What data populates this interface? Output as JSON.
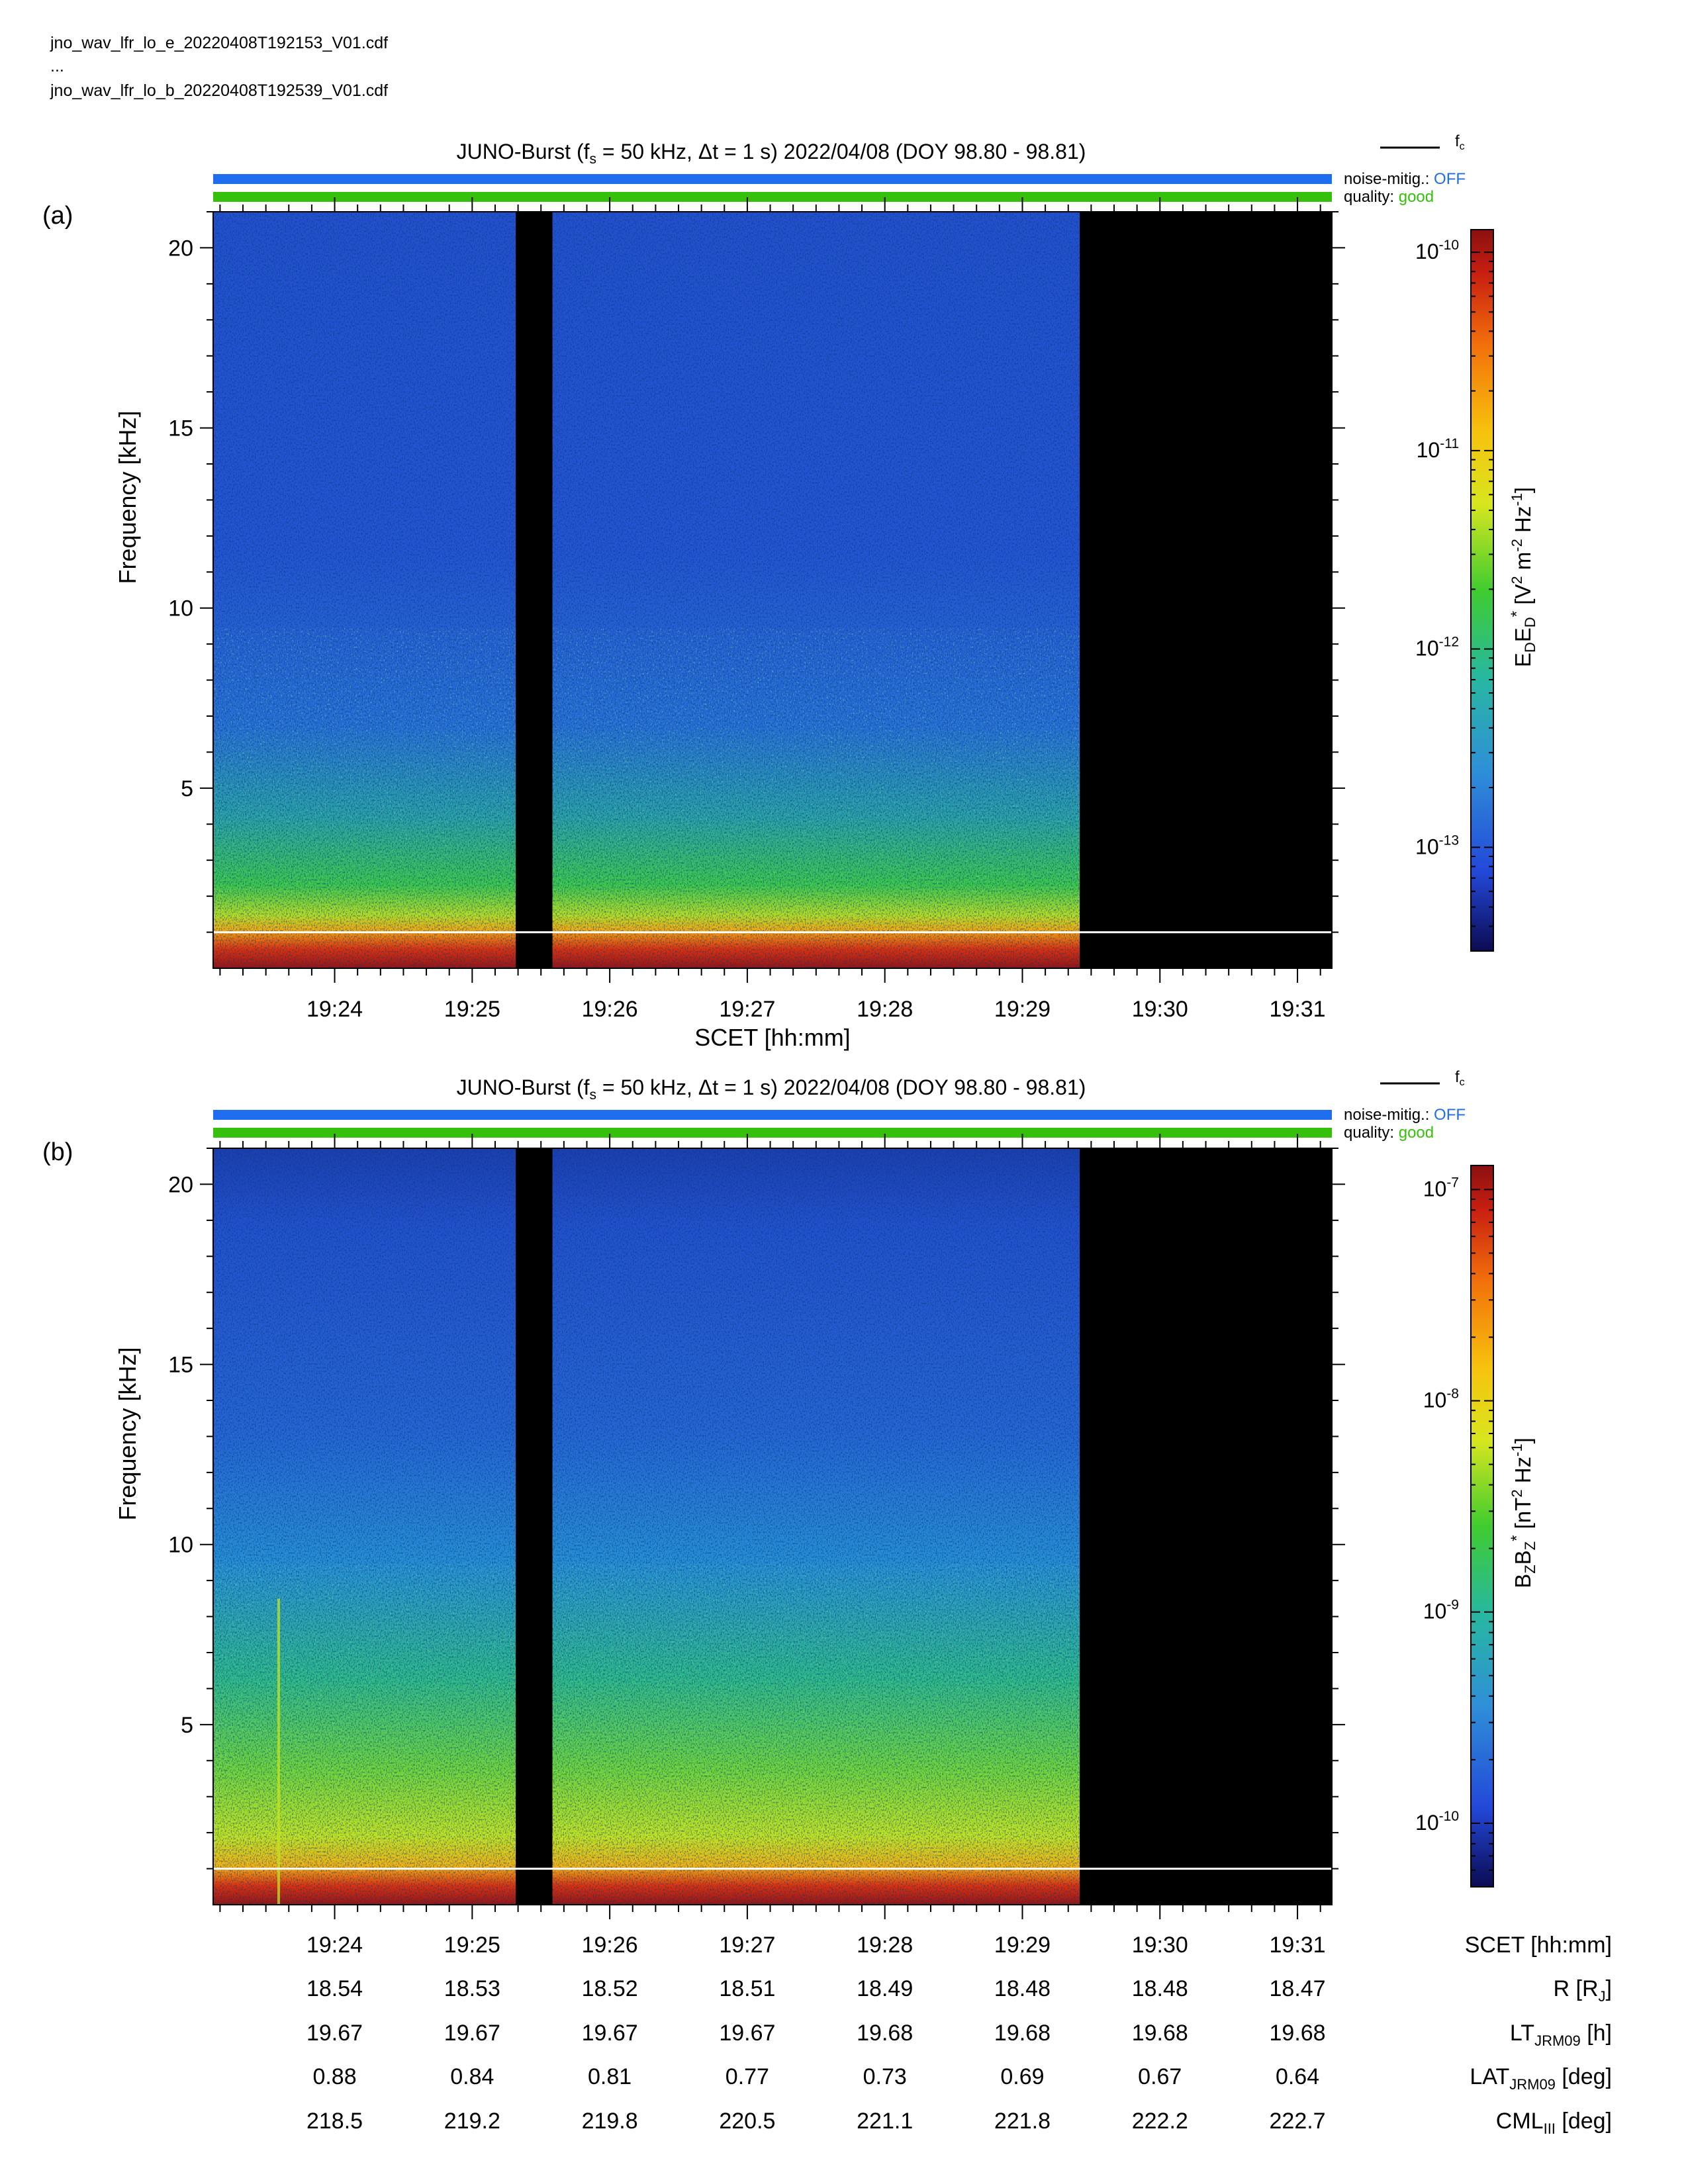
{
  "header": {
    "file_line_1": "jno_wav_lfr_lo_e_20220408T192153_V01.cdf",
    "ellipsis": "...",
    "file_line_2": "jno_wav_lfr_lo_b_20220408T192539_V01.cdf"
  },
  "colors": {
    "noise_bar": "#1f6ef0",
    "quality_bar": "#35c10b",
    "noise_status": "#1f6ef0",
    "quality_status": "#35c10b",
    "fc_line_plot": "#ffffff",
    "fc_line_legend": "#000000",
    "data_gap": "#000000",
    "colormap": [
      "#0b0b52",
      "#2348d9",
      "#2e8fd8",
      "#27b8a0",
      "#3fcc2f",
      "#d8e61e",
      "#f7c20d",
      "#f2700a",
      "#c81e10",
      "#8a1010"
    ]
  },
  "chart_data": [
    {
      "type": "heatmap",
      "panel_label": "(a)",
      "title_parts": {
        "lead": "JUNO-Burst (f",
        "sub": "s",
        "rest": " = 50 kHz, Δt = 1 s)  2022/04/08 (DOY 98.80 - 98.81)"
      },
      "legend": {
        "fc_label": "f",
        "fc_sub": "c"
      },
      "status": {
        "noise_label": "noise-mitig.:",
        "noise_value": "OFF",
        "quality_label": "quality:",
        "quality_value": "good"
      },
      "ylabel": "Frequency [kHz]",
      "ylim": [
        0,
        21
      ],
      "yticks": [
        5,
        10,
        15,
        20
      ],
      "xlabel": "SCET [hh:mm]",
      "xlim": [
        "19:23:07",
        "19:31:15"
      ],
      "xticks": [
        "19:24",
        "19:25",
        "19:26",
        "19:27",
        "19:28",
        "19:29",
        "19:30",
        "19:31"
      ],
      "data_extent": [
        "19:23:07",
        "19:29:25"
      ],
      "data_gaps": [
        [
          "19:25:19",
          "19:25:35"
        ]
      ],
      "fc_kHz": 1.0,
      "colorbar": {
        "label_parts": [
          "E",
          "D",
          "E",
          "D",
          "*",
          " [V",
          "2",
          " m",
          "-2",
          " Hz",
          "-1",
          "]"
        ],
        "scale": "log",
        "range": [
          "3e-14",
          "1.3e-10"
        ],
        "ticks": [
          {
            "base": "10",
            "exp": "-10"
          },
          {
            "base": "10",
            "exp": "-11"
          },
          {
            "base": "10",
            "exp": "-12"
          },
          {
            "base": "10",
            "exp": "-13"
          }
        ]
      }
    },
    {
      "type": "heatmap",
      "panel_label": "(b)",
      "title_parts": {
        "lead": "JUNO-Burst (f",
        "sub": "s",
        "rest": " = 50 kHz, Δt = 1 s)  2022/04/08 (DOY 98.80 - 98.81)"
      },
      "legend": {
        "fc_label": "f",
        "fc_sub": "c"
      },
      "status": {
        "noise_label": "noise-mitig.:",
        "noise_value": "OFF",
        "quality_label": "quality:",
        "quality_value": "good"
      },
      "ylabel": "Frequency [kHz]",
      "ylim": [
        0,
        21
      ],
      "yticks": [
        5,
        10,
        15,
        20
      ],
      "xlim": [
        "19:23:07",
        "19:31:15"
      ],
      "xticks": [
        "19:24",
        "19:25",
        "19:26",
        "19:27",
        "19:28",
        "19:29",
        "19:30",
        "19:31"
      ],
      "data_extent": [
        "19:23:07",
        "19:29:25"
      ],
      "data_gaps": [
        [
          "19:25:19",
          "19:25:35"
        ]
      ],
      "fc_kHz": 1.0,
      "colorbar": {
        "label_parts": [
          "B",
          "Z",
          "B",
          "Z",
          "*",
          " [nT",
          "2",
          " Hz",
          "-1",
          "]"
        ],
        "scale": "log",
        "range": [
          "5e-11",
          "1.3e-7"
        ],
        "ticks": [
          {
            "base": "10",
            "exp": "-7"
          },
          {
            "base": "10",
            "exp": "-8"
          },
          {
            "base": "10",
            "exp": "-9"
          },
          {
            "base": "10",
            "exp": "-10"
          }
        ]
      }
    }
  ],
  "ephemeris": {
    "rows": [
      {
        "label": "SCET [hh:mm]",
        "label_main": "SCET [hh:mm]",
        "label_sub": "",
        "label_tail": "",
        "values": [
          "19:24",
          "19:25",
          "19:26",
          "19:27",
          "19:28",
          "19:29",
          "19:30",
          "19:31"
        ]
      },
      {
        "label": "R [RJ]",
        "label_main": "R [R",
        "label_sub": "J",
        "label_tail": "]",
        "values": [
          "18.54",
          "18.53",
          "18.52",
          "18.51",
          "18.49",
          "18.48",
          "18.48",
          "18.47"
        ]
      },
      {
        "label": "LT JRM09 [h]",
        "label_main": "LT",
        "label_sub": "JRM09",
        "label_tail": " [h]",
        "values": [
          "19.67",
          "19.67",
          "19.67",
          "19.67",
          "19.68",
          "19.68",
          "19.68",
          "19.68"
        ]
      },
      {
        "label": "LAT JRM09 [deg]",
        "label_main": "LAT",
        "label_sub": "JRM09",
        "label_tail": " [deg]",
        "values": [
          "0.88",
          "0.84",
          "0.81",
          "0.77",
          "0.73",
          "0.69",
          "0.67",
          "0.64"
        ]
      },
      {
        "label": "CML III [deg]",
        "label_main": "CML",
        "label_sub": "III",
        "label_tail": " [deg]",
        "values": [
          "218.5",
          "219.2",
          "219.8",
          "220.5",
          "221.1",
          "221.8",
          "222.2",
          "222.7"
        ]
      }
    ]
  }
}
